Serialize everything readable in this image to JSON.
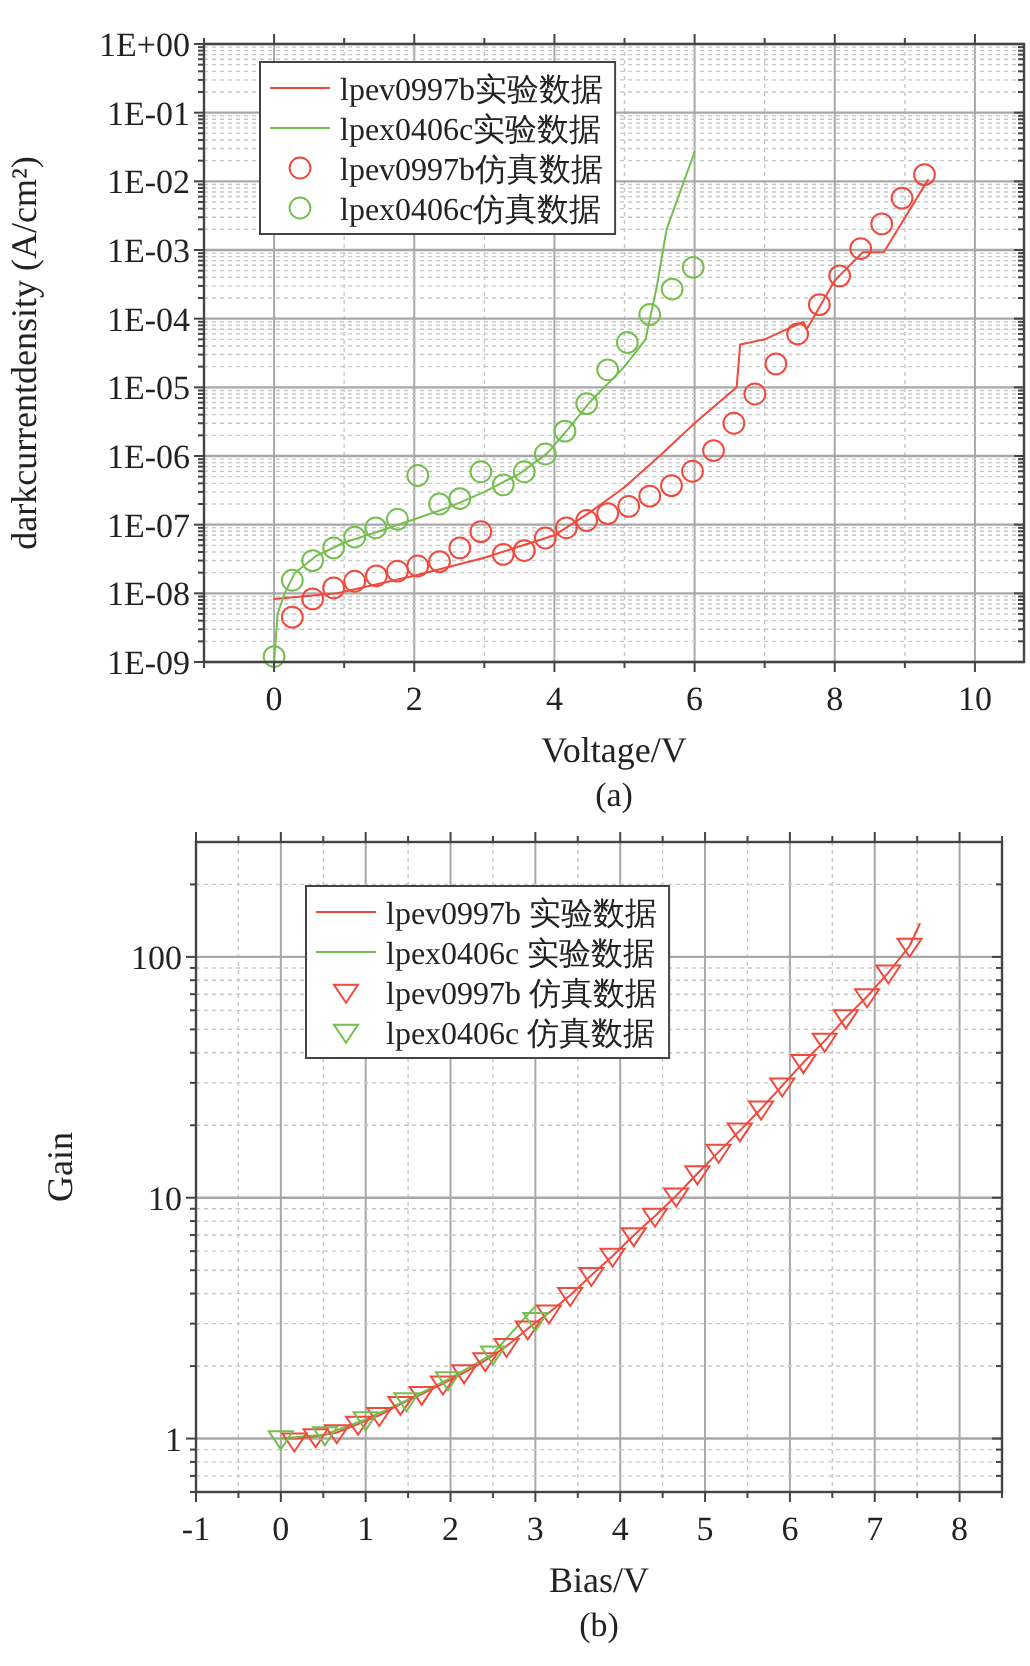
{
  "chart_data": [
    {
      "type": "line",
      "xlabel": "Voltage/V",
      "ylabel": "darkcurrentdensity (A/cm²)",
      "annotations": [
        "(a)"
      ],
      "log": "y",
      "grid": true,
      "legend": "top left",
      "xlim": [
        -1,
        10.7
      ],
      "xticks": [
        0,
        2,
        4,
        6,
        8,
        10
      ],
      "ylim": [
        1e-09,
        1
      ],
      "yticks": [
        {
          "value": 1,
          "label": "1E+00"
        },
        {
          "value": 0.1,
          "label": "1E-01"
        },
        {
          "value": 0.01,
          "label": "1E-02"
        },
        {
          "value": 0.001,
          "label": "1E-03"
        },
        {
          "value": 0.0001,
          "label": "1E-04"
        },
        {
          "value": 1e-05,
          "label": "1E-05"
        },
        {
          "value": 1e-06,
          "label": "1E-06"
        },
        {
          "value": 1e-07,
          "label": "1E-07"
        },
        {
          "value": 1e-08,
          "label": "1E-08"
        },
        {
          "value": 1e-09,
          "label": "1E-09"
        }
      ],
      "series": [
        {
          "name": "lpev0997b实验数据",
          "type": "line",
          "marker": "none",
          "color": "#f04a3e",
          "x": [
            0,
            0.9,
            2,
            3,
            4,
            4.5,
            5,
            5.5,
            6,
            6.6,
            6.65,
            7,
            7.55,
            7.6,
            8,
            8.4,
            8.7,
            9.33
          ],
          "values": [
            8.3e-09,
            1e-08,
            1.8e-08,
            3.3e-08,
            7e-08,
            1.5e-07,
            3.5e-07,
            1e-06,
            3e-06,
            1e-05,
            4.2e-05,
            5e-05,
            9e-05,
            7e-05,
            0.00036,
            0.00093,
            0.00093,
            0.0105
          ]
        },
        {
          "name": "lpex0406c实验数据",
          "type": "line",
          "marker": "none",
          "color": "#74bf4e",
          "x": [
            0,
            0.05,
            0.15,
            0.3,
            0.6,
            1,
            1.5,
            2,
            2.5,
            3,
            3.5,
            3.9,
            4.2,
            4.5,
            5,
            5.3,
            5.46,
            5.6,
            6
          ],
          "values": [
            1e-09,
            5e-09,
            1e-08,
            2e-08,
            3.5e-08,
            5.5e-08,
            8e-08,
            1.2e-07,
            1.8e-07,
            3e-07,
            5.5e-07,
            1.1e-06,
            2.5e-06,
            6e-06,
            2e-05,
            5e-05,
            0.00029,
            0.002,
            0.027
          ]
        },
        {
          "name": "lpev0997b仿真数据",
          "type": "scatter",
          "marker": "circle",
          "color": "#f04a3e",
          "x": [
            0.26,
            0.55,
            0.85,
            1.15,
            1.46,
            1.76,
            2.05,
            2.36,
            2.65,
            2.95,
            3.27,
            3.57,
            3.87,
            4.17,
            4.46,
            4.76,
            5.06,
            5.36,
            5.67,
            5.97,
            6.27,
            6.56,
            6.86,
            7.16,
            7.47,
            7.78,
            8.07,
            8.37,
            8.67,
            8.96,
            9.28
          ],
          "values": [
            4.5e-09,
            8.3e-09,
            1.2e-08,
            1.5e-08,
            1.8e-08,
            2.1e-08,
            2.5e-08,
            2.9e-08,
            4.6e-08,
            7.9e-08,
            3.7e-08,
            4.2e-08,
            6.4e-08,
            9e-08,
            1.15e-07,
            1.45e-07,
            1.85e-07,
            2.6e-07,
            3.7e-07,
            6e-07,
            1.2e-06,
            3e-06,
            8e-06,
            2.2e-05,
            6e-05,
            0.00016,
            0.00042,
            0.00105,
            0.0024,
            0.0057,
            0.0125
          ]
        },
        {
          "name": "lpex0406c仿真数据",
          "type": "scatter",
          "marker": "circle",
          "color": "#74bf4e",
          "x": [
            0,
            0.26,
            0.55,
            0.85,
            1.15,
            1.45,
            1.76,
            2.05,
            2.36,
            2.65,
            2.95,
            3.27,
            3.57,
            3.87,
            4.15,
            4.46,
            4.76,
            5.04,
            5.36,
            5.68,
            5.98
          ],
          "values": [
            1.2e-09,
            1.55e-08,
            3e-08,
            4.6e-08,
            6.6e-08,
            9e-08,
            1.2e-07,
            5.2e-07,
            2e-07,
            2.4e-07,
            5.9e-07,
            3.8e-07,
            5.9e-07,
            1.07e-06,
            2.3e-06,
            5.8e-06,
            1.8e-05,
            4.5e-05,
            0.000115,
            0.00027,
            0.00056
          ]
        }
      ]
    },
    {
      "type": "line",
      "xlabel": "Bias/V",
      "ylabel": "Gain",
      "annotations": [
        "(b)"
      ],
      "log": "y",
      "grid": true,
      "legend": "top left",
      "xlim": [
        -1,
        8.5
      ],
      "xticks": [
        -1,
        0,
        1,
        2,
        3,
        4,
        5,
        6,
        7,
        8
      ],
      "ylim": [
        0.6,
        300
      ],
      "yticks": [
        1,
        10,
        100
      ],
      "series": [
        {
          "name": "lpev0997b 实验数据",
          "type": "line",
          "marker": "none",
          "color": "#f04a3e",
          "x": [
            0.05,
            0.16,
            0.41,
            0.66,
            0.91,
            1.16,
            1.41,
            1.66,
            1.91,
            2.16,
            2.41,
            2.66,
            2.91,
            3.16,
            3.41,
            3.66,
            3.91,
            4.16,
            4.41,
            4.66,
            4.91,
            5.16,
            5.41,
            5.66,
            5.91,
            6.16,
            6.41,
            6.66,
            6.91,
            7.16,
            7.41,
            7.53
          ],
          "values": [
            1,
            1.0,
            1.02,
            1.06,
            1.15,
            1.25,
            1.39,
            1.53,
            1.69,
            1.88,
            2.11,
            2.42,
            2.86,
            3.33,
            3.94,
            4.77,
            5.73,
            6.98,
            8.4,
            10.2,
            12.6,
            15.5,
            19,
            23.4,
            29.2,
            36.5,
            44.8,
            56,
            68.5,
            86,
            111,
            137
          ]
        },
        {
          "name": "lpex0406c 实验数据",
          "type": "line",
          "marker": "none",
          "color": "#74bf4e",
          "x": [
            0,
            0.52,
            1,
            1.48,
            1.97,
            2.5,
            3.0
          ],
          "values": [
            1.0,
            1.04,
            1.2,
            1.44,
            1.76,
            2.25,
            3.55
          ]
        },
        {
          "name": "lpev0997b 仿真数据",
          "type": "scatter",
          "marker": "triangle",
          "color": "#f04a3e",
          "x": [
            0.16,
            0.41,
            0.66,
            0.91,
            1.16,
            1.41,
            1.66,
            1.91,
            2.16,
            2.41,
            2.66,
            2.91,
            3.16,
            3.41,
            3.66,
            3.91,
            4.16,
            4.41,
            4.66,
            4.91,
            5.16,
            5.41,
            5.66,
            5.91,
            6.16,
            6.41,
            6.66,
            6.91,
            7.16,
            7.41
          ],
          "values": [
            0.98,
            1.02,
            1.06,
            1.15,
            1.25,
            1.39,
            1.53,
            1.69,
            1.88,
            2.11,
            2.42,
            2.86,
            3.33,
            3.94,
            4.77,
            5.73,
            6.98,
            8.4,
            10.2,
            12.6,
            15.5,
            19,
            23.4,
            29.2,
            36.5,
            44.8,
            56,
            68.5,
            86,
            111
          ]
        },
        {
          "name": "lpex0406c 仿真数据",
          "type": "scatter",
          "marker": "triangle",
          "color": "#74bf4e",
          "x": [
            0,
            0.52,
            1,
            1.48,
            1.97,
            2.5,
            3.0
          ],
          "values": [
            1.0,
            1.04,
            1.2,
            1.44,
            1.76,
            2.25,
            3.1
          ]
        }
      ]
    }
  ]
}
